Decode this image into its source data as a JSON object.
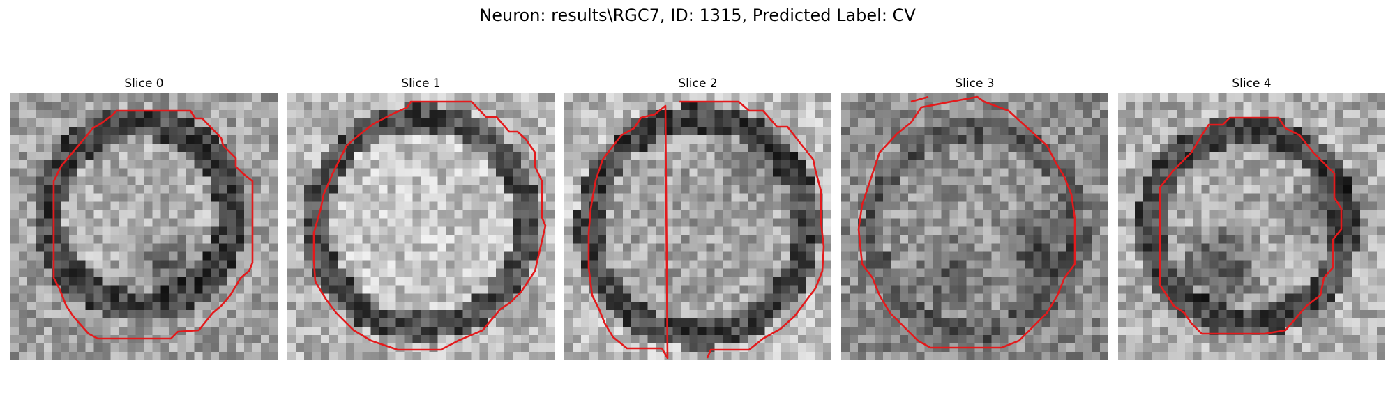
{
  "figure": {
    "title": "Neuron: results\\RGC7, ID: 1315, Predicted Label: CV",
    "contour_color": "#e31a1c",
    "colormap": "gray"
  },
  "slices": [
    {
      "label": "Slice 0"
    },
    {
      "label": "Slice 1"
    },
    {
      "label": "Slice 2"
    },
    {
      "label": "Slice 3"
    },
    {
      "label": "Slice 4"
    }
  ]
}
